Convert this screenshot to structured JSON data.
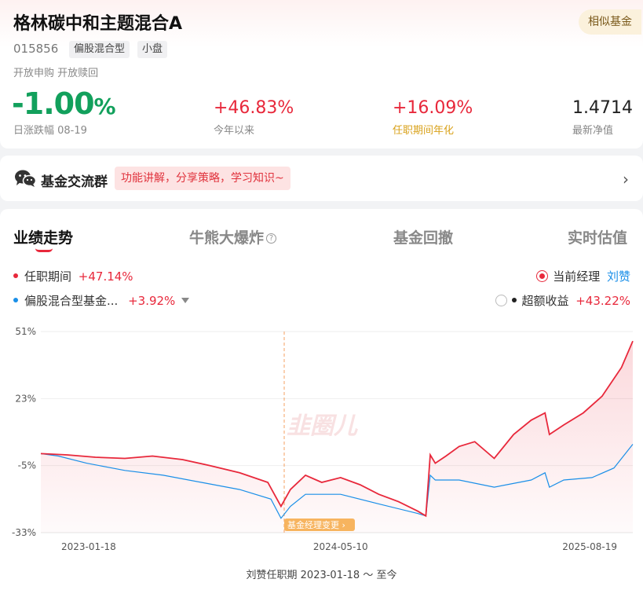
{
  "header": {
    "title": "格林碳中和主题混合A",
    "similar_label": "相似基金",
    "code": "015856",
    "tags": [
      "偏股混合型",
      "小盘"
    ],
    "subline": "开放申购  开放赎回"
  },
  "stats": {
    "daily_change_value": "-1.00",
    "daily_change_pct_sign": "%",
    "daily_change_label": "日涨跌幅 08-19",
    "ytd_value": "+46.83%",
    "ytd_label": "今年以来",
    "tenure_annual_value": "+16.09%",
    "tenure_annual_label": "任职期间年化",
    "nav_value": "1.4714",
    "nav_label": "最新净值"
  },
  "group": {
    "title": "基金交流群",
    "tag": "功能讲解，分享策略，学习知识~"
  },
  "tabs": [
    "业绩走势",
    "牛熊大爆炸",
    "基金回撤",
    "实时估值"
  ],
  "legend": {
    "series1_name": "任职期间",
    "series1_value": "+47.14%",
    "series2_name": "偏股混合型基金...",
    "series2_value": "+3.92%",
    "manager_label": "当前经理",
    "manager_name": "刘赞",
    "excess_label": "超额收益",
    "excess_value": "+43.22%"
  },
  "annotation": {
    "manager_change": "基金经理变更 ›",
    "watermark": "韭圈儿"
  },
  "footer": {
    "text": "刘赞任职期 2023-01-18 ～ 至今"
  },
  "colors": {
    "up": "#e8283b",
    "down": "#12a05c",
    "benchmark": "#1a8fe8"
  },
  "chart_data": {
    "type": "line",
    "ylim": [
      -33,
      51
    ],
    "y_ticks": [
      "51%",
      "23%",
      "-5%",
      "-33%"
    ],
    "y_tick_values": [
      51,
      23,
      -5,
      -33
    ],
    "x_ticks": [
      "2023-01-18",
      "2024-05-10",
      "2025-08-19"
    ],
    "x_tick_dates": [
      "2023-01-18",
      "2024-05-10",
      "2025-08-19"
    ],
    "x_range": [
      "2023-01-18",
      "2025-08-19"
    ],
    "marker_date": "2024-05-10",
    "series": [
      {
        "name": "任职期间",
        "color": "#e8283b",
        "points": [
          [
            "2023-01-18",
            0
          ],
          [
            "2023-03-01",
            -0.5
          ],
          [
            "2023-04-15",
            -1.5
          ],
          [
            "2023-06-01",
            -2
          ],
          [
            "2023-07-15",
            -1
          ],
          [
            "2023-09-01",
            -2.5
          ],
          [
            "2023-10-15",
            -5
          ],
          [
            "2023-12-01",
            -8
          ],
          [
            "2024-01-15",
            -12
          ],
          [
            "2024-02-05",
            -22
          ],
          [
            "2024-02-20",
            -15
          ],
          [
            "2024-03-15",
            -9
          ],
          [
            "2024-04-10",
            -12
          ],
          [
            "2024-05-10",
            -10
          ],
          [
            "2024-06-10",
            -13
          ],
          [
            "2024-07-10",
            -17
          ],
          [
            "2024-08-10",
            -20
          ],
          [
            "2024-09-10",
            -24
          ],
          [
            "2024-09-23",
            -26
          ],
          [
            "2024-09-30",
            -0.5
          ],
          [
            "2024-10-08",
            -4
          ],
          [
            "2024-10-25",
            -1
          ],
          [
            "2024-11-15",
            3
          ],
          [
            "2024-12-10",
            5
          ],
          [
            "2025-01-10",
            -2
          ],
          [
            "2025-02-10",
            8
          ],
          [
            "2025-03-10",
            14
          ],
          [
            "2025-04-01",
            17
          ],
          [
            "2025-04-08",
            8
          ],
          [
            "2025-05-01",
            12
          ],
          [
            "2025-06-01",
            17
          ],
          [
            "2025-07-01",
            24
          ],
          [
            "2025-08-01",
            36
          ],
          [
            "2025-08-19",
            47
          ]
        ]
      },
      {
        "name": "偏股混合型基金",
        "color": "#1a8fe8",
        "points": [
          [
            "2023-01-18",
            0
          ],
          [
            "2023-02-15",
            -1
          ],
          [
            "2023-04-01",
            -4
          ],
          [
            "2023-06-01",
            -7
          ],
          [
            "2023-08-01",
            -9
          ],
          [
            "2023-10-01",
            -12
          ],
          [
            "2023-12-01",
            -15
          ],
          [
            "2024-01-20",
            -19
          ],
          [
            "2024-02-05",
            -27
          ],
          [
            "2024-02-20",
            -22
          ],
          [
            "2024-03-15",
            -17
          ],
          [
            "2024-05-10",
            -17
          ],
          [
            "2024-07-10",
            -21
          ],
          [
            "2024-09-10",
            -25
          ],
          [
            "2024-09-23",
            -26
          ],
          [
            "2024-09-30",
            -9
          ],
          [
            "2024-10-08",
            -11
          ],
          [
            "2024-11-15",
            -11
          ],
          [
            "2025-01-10",
            -14
          ],
          [
            "2025-03-10",
            -11
          ],
          [
            "2025-04-01",
            -8
          ],
          [
            "2025-04-08",
            -14
          ],
          [
            "2025-05-01",
            -11
          ],
          [
            "2025-06-15",
            -10
          ],
          [
            "2025-07-20",
            -6
          ],
          [
            "2025-08-19",
            3.92
          ]
        ]
      }
    ]
  }
}
